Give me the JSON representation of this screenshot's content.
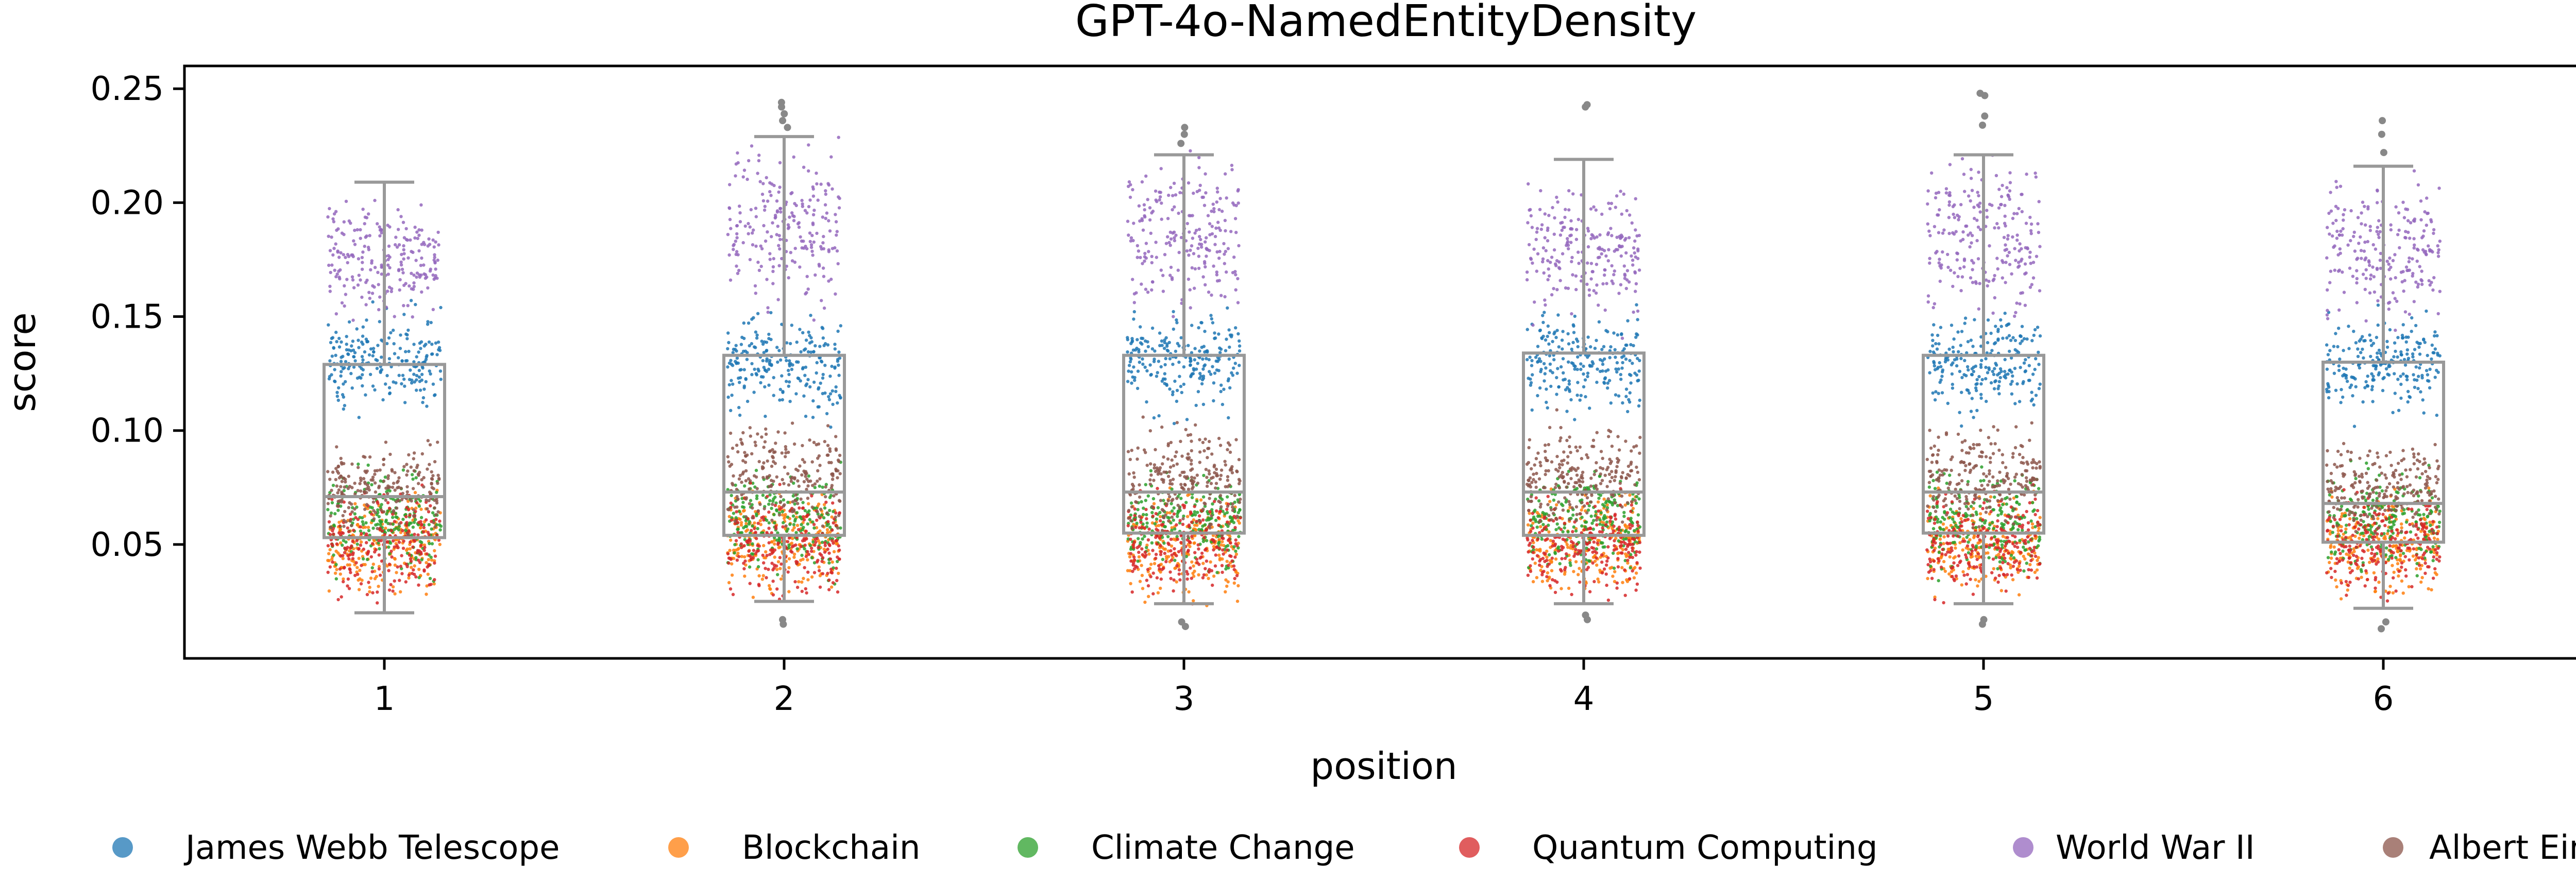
{
  "chart_data": {
    "type": "strip-box",
    "title": "GPT-4o-NamedEntityDensity",
    "xlabel": "position",
    "ylabel": "score",
    "categories": [
      "1",
      "2",
      "3",
      "4",
      "5",
      "6"
    ],
    "yticks": [
      "0.05",
      "0.10",
      "0.15",
      "0.20",
      "0.25"
    ],
    "ylim": [
      0.0,
      0.26
    ],
    "grid": false,
    "legend_position": "bottom",
    "box_color": "#999999",
    "boxes": [
      {
        "category": "1",
        "whislo": 0.02,
        "q1": 0.053,
        "med": 0.071,
        "q3": 0.129,
        "whishi": 0.209,
        "fliers": []
      },
      {
        "category": "2",
        "whislo": 0.025,
        "q1": 0.054,
        "med": 0.073,
        "q3": 0.133,
        "whishi": 0.229,
        "fliers": [
          0.233,
          0.236,
          0.239,
          0.242,
          0.244,
          0.015,
          0.017
        ]
      },
      {
        "category": "3",
        "whislo": 0.024,
        "q1": 0.055,
        "med": 0.073,
        "q3": 0.133,
        "whishi": 0.221,
        "fliers": [
          0.226,
          0.23,
          0.233,
          0.014,
          0.016
        ]
      },
      {
        "category": "4",
        "whislo": 0.024,
        "q1": 0.054,
        "med": 0.073,
        "q3": 0.134,
        "whishi": 0.219,
        "fliers": [
          0.242,
          0.243,
          0.017,
          0.019
        ]
      },
      {
        "category": "5",
        "whislo": 0.024,
        "q1": 0.055,
        "med": 0.073,
        "q3": 0.133,
        "whishi": 0.221,
        "fliers": [
          0.234,
          0.238,
          0.247,
          0.248,
          0.015,
          0.017
        ]
      },
      {
        "category": "6",
        "whislo": 0.022,
        "q1": 0.051,
        "med": 0.068,
        "q3": 0.13,
        "whishi": 0.216,
        "fliers": [
          0.222,
          0.23,
          0.236,
          0.013,
          0.016
        ]
      }
    ],
    "series": [
      {
        "name": "James Webb Telescope",
        "color": "#1f77b4",
        "range_per_position": [
          [
            0.1,
            0.16
          ],
          [
            0.1,
            0.16
          ],
          [
            0.1,
            0.16
          ],
          [
            0.1,
            0.16
          ],
          [
            0.1,
            0.16
          ],
          [
            0.1,
            0.16
          ]
        ]
      },
      {
        "name": "Blockchain",
        "color": "#ff7f0e",
        "range_per_position": [
          [
            0.02,
            0.08
          ],
          [
            0.02,
            0.08
          ],
          [
            0.02,
            0.08
          ],
          [
            0.02,
            0.08
          ],
          [
            0.02,
            0.08
          ],
          [
            0.02,
            0.08
          ]
        ]
      },
      {
        "name": "Climate Change",
        "color": "#2ca02c",
        "range_per_position": [
          [
            0.03,
            0.09
          ],
          [
            0.03,
            0.09
          ],
          [
            0.03,
            0.09
          ],
          [
            0.03,
            0.09
          ],
          [
            0.03,
            0.09
          ],
          [
            0.03,
            0.09
          ]
        ]
      },
      {
        "name": "Quantum Computing",
        "color": "#d62728",
        "range_per_position": [
          [
            0.02,
            0.08
          ],
          [
            0.02,
            0.08
          ],
          [
            0.02,
            0.08
          ],
          [
            0.02,
            0.08
          ],
          [
            0.02,
            0.08
          ],
          [
            0.02,
            0.08
          ]
        ]
      },
      {
        "name": "World War II",
        "color": "#9467bd",
        "range_per_position": [
          [
            0.14,
            0.21
          ],
          [
            0.14,
            0.24
          ],
          [
            0.14,
            0.23
          ],
          [
            0.14,
            0.22
          ],
          [
            0.14,
            0.23
          ],
          [
            0.14,
            0.22
          ]
        ]
      },
      {
        "name": "Albert Einstein",
        "color": "#8c564b",
        "range_per_position": [
          [
            0.05,
            0.1
          ],
          [
            0.05,
            0.11
          ],
          [
            0.05,
            0.11
          ],
          [
            0.05,
            0.11
          ],
          [
            0.05,
            0.11
          ],
          [
            0.05,
            0.1
          ]
        ]
      }
    ]
  }
}
